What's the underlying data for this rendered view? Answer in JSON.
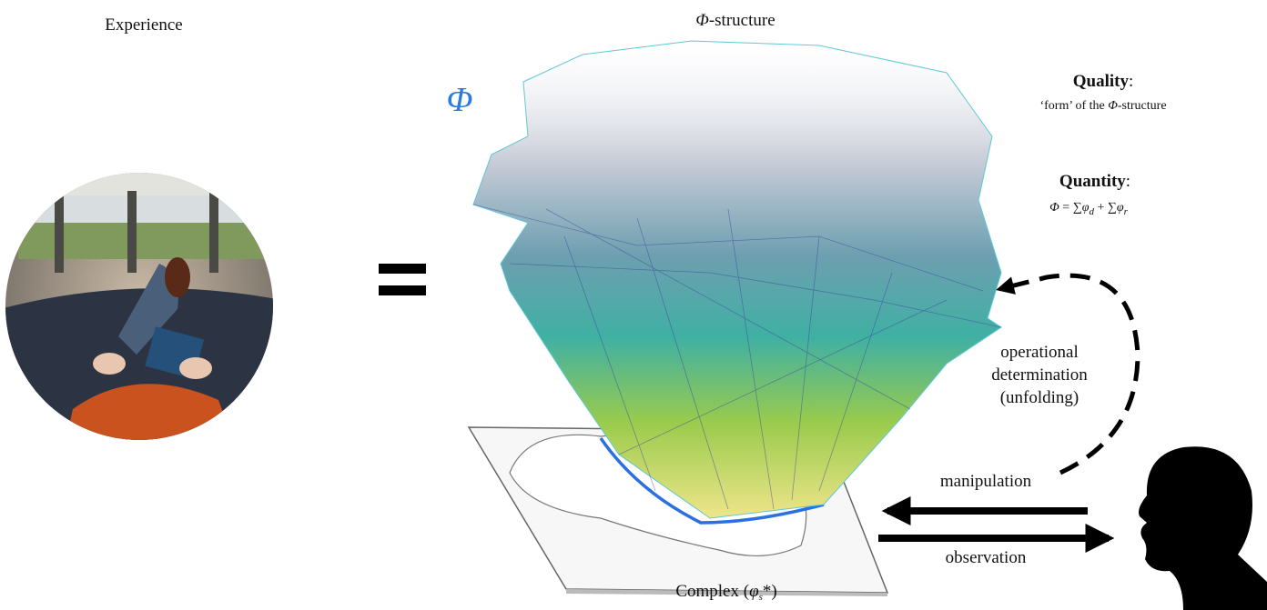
{
  "left": {
    "title": "Experience"
  },
  "center": {
    "title": {
      "symbol": "Φ",
      "rest": "-structure"
    },
    "phi": "Φ",
    "base_label": {
      "parts": [
        "Complex (",
        "φ",
        "s",
        "*)"
      ]
    }
  },
  "quality": {
    "heading": "Quality",
    "colon": ":",
    "text": {
      "parts": [
        "‘form’ of the ",
        "Φ",
        "-structure"
      ]
    }
  },
  "quantity": {
    "heading": "Quantity",
    "colon": ":",
    "formula": {
      "parts": [
        "Φ",
        " = ∑",
        "φ",
        "d",
        " + ∑",
        "φ",
        "r"
      ]
    }
  },
  "loop": {
    "lines": [
      "operational",
      "determination",
      "(unfolding)"
    ]
  },
  "arrows": {
    "manipulation": "manipulation",
    "observation": "observation"
  }
}
